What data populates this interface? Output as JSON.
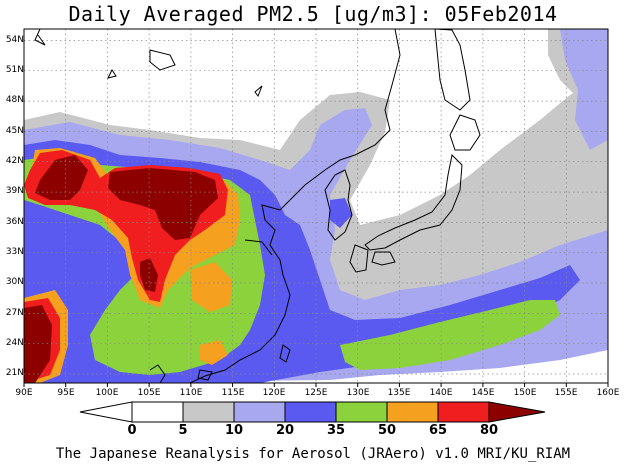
{
  "title": "Daily Averaged PM2.5 [ug/m3]: 05Feb2014",
  "footer": "The Japanese Reanalysis for Aerosol (JRAero) v1.0 MRI/KU_RIAM",
  "map": {
    "lon_range": [
      90,
      160
    ],
    "lat_range": [
      20,
      55
    ],
    "lon_ticks": [
      "90E",
      "95E",
      "100E",
      "105E",
      "110E",
      "115E",
      "120E",
      "125E",
      "130E",
      "135E",
      "140E",
      "145E",
      "150E",
      "155E",
      "160E"
    ],
    "lat_ticks": [
      "21N",
      "24N",
      "27N",
      "30N",
      "33N",
      "36N",
      "39N",
      "42N",
      "45N",
      "48N",
      "51N",
      "54N"
    ],
    "grid": "dotted"
  },
  "colorbar": {
    "levels": [
      "0",
      "5",
      "10",
      "20",
      "35",
      "50",
      "65",
      "80"
    ],
    "colors": [
      "#ffffff",
      "#c8c8c8",
      "#a8a8f0",
      "#5a5af0",
      "#8cd23c",
      "#f5a01e",
      "#f01e1e",
      "#8c0000"
    ],
    "low_extension_color": "#ffffff",
    "high_extension_color": "#8c0000"
  }
}
